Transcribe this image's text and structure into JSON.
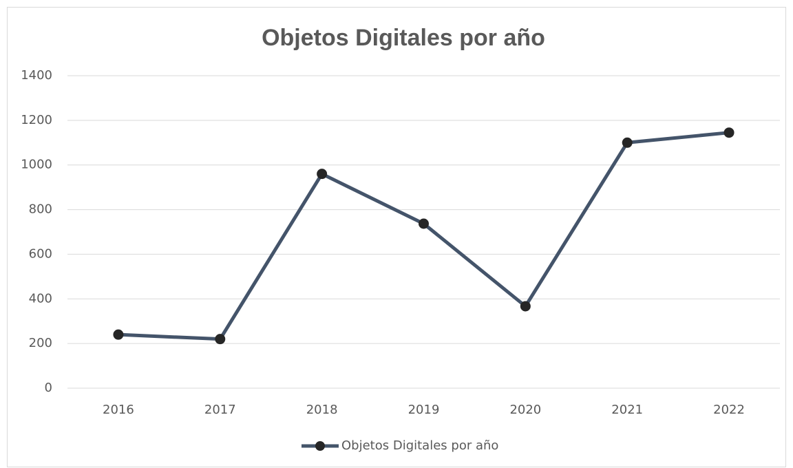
{
  "chart_data": {
    "type": "line",
    "title": "Objetos Digitales por año",
    "categories": [
      "2016",
      "2017",
      "2018",
      "2019",
      "2020",
      "2021",
      "2022"
    ],
    "series": [
      {
        "name": "Objetos Digitales por año",
        "color": "#44546a",
        "marker_color": "#262626",
        "values": [
          240,
          220,
          960,
          737,
          367,
          1100,
          1145
        ]
      }
    ],
    "ylim": [
      0,
      1400
    ],
    "yticks": [
      0,
      200,
      400,
      600,
      800,
      1000,
      1200,
      1400
    ],
    "grid": true,
    "legend": "bottom"
  }
}
